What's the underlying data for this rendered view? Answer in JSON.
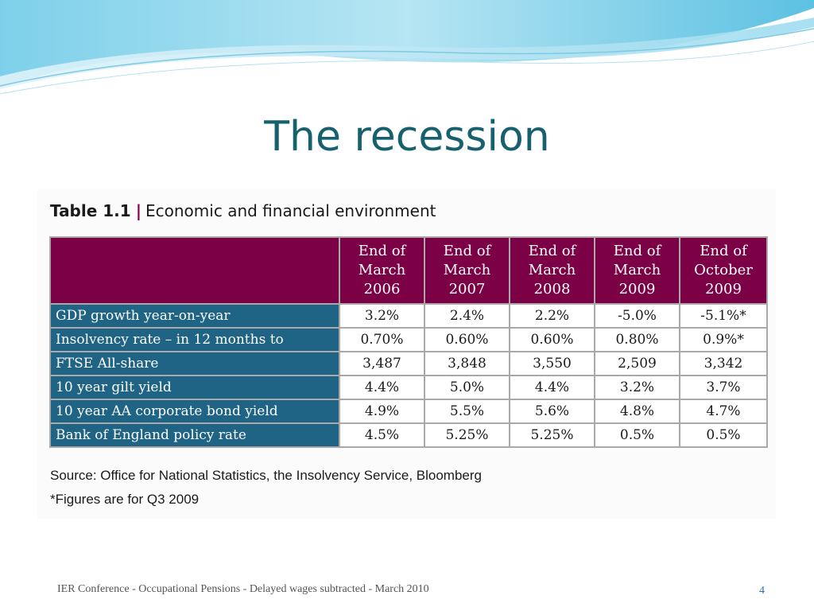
{
  "slide": {
    "title": "The recession",
    "footer": "IER Conference - Occupational Pensions - Delayed wages subtracted - March 2010",
    "page_number": "4"
  },
  "table": {
    "number": "Table 1.1",
    "separator": "|",
    "caption": "Economic and financial environment",
    "header_color": "#7c0046",
    "label_color": "#1f6385",
    "columns": [
      "End of\nMarch\n2006",
      "End of\nMarch\n2007",
      "End  of\nMarch\n2008",
      "End of\nMarch\n2009",
      "End of\nOctober\n2009"
    ],
    "rows": [
      {
        "label": "GDP growth year-on-year",
        "values": [
          "3.2%",
          "2.4%",
          "2.2%",
          "-5.0%",
          "-5.1%*"
        ]
      },
      {
        "label": "Insolvency rate – in 12 months to",
        "values": [
          "0.70%",
          "0.60%",
          "0.60%",
          "0.80%",
          "0.9%*"
        ]
      },
      {
        "label": "FTSE All-share",
        "values": [
          "3,487",
          "3,848",
          "3,550",
          "2,509",
          "3,342"
        ]
      },
      {
        "label": "10 year gilt yield",
        "values": [
          "4.4%",
          "5.0%",
          "4.4%",
          "3.2%",
          "3.7%"
        ]
      },
      {
        "label": "10 year AA corporate bond yield",
        "values": [
          "4.9%",
          "5.5%",
          "5.6%",
          "4.8%",
          "4.7%"
        ]
      },
      {
        "label": "Bank of England policy rate",
        "values": [
          "4.5%",
          "5.25%",
          "5.25%",
          "0.5%",
          "0.5%"
        ]
      }
    ],
    "source": "Source: Office for National Statistics, the Insolvency Service, Bloomberg",
    "note": "*Figures are for Q3 2009"
  }
}
